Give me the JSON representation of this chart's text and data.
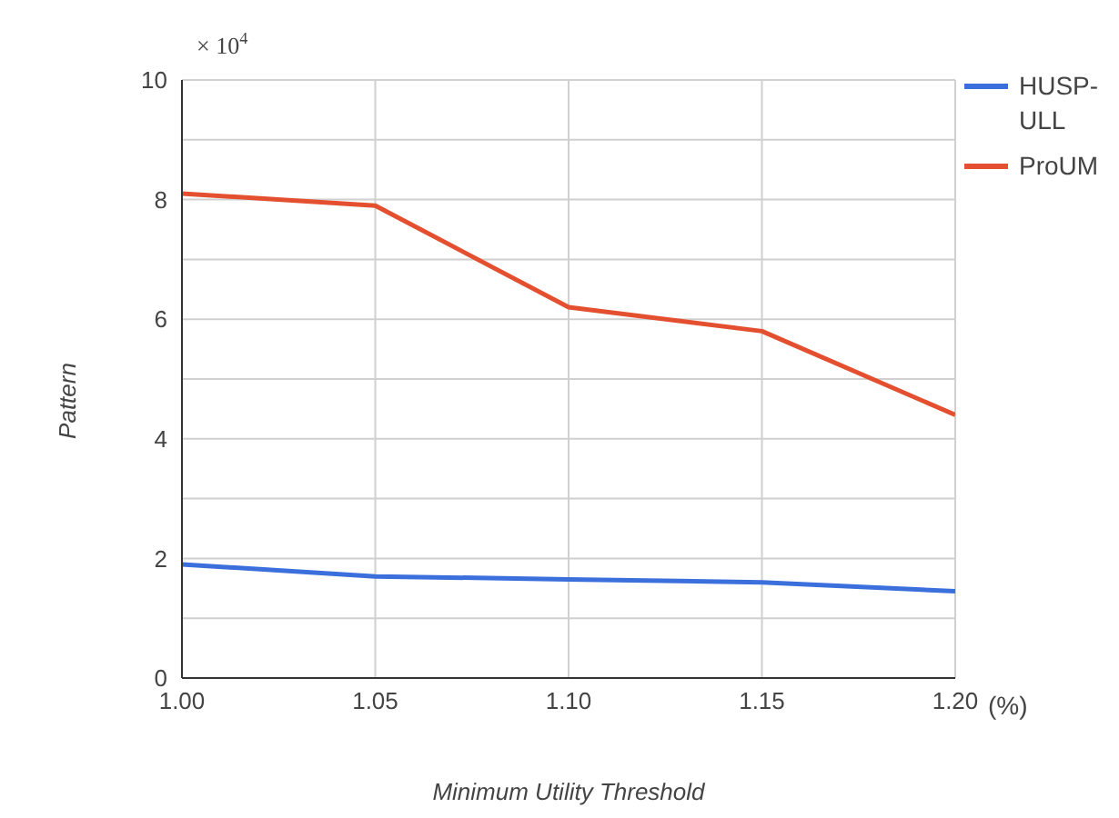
{
  "chart_data": {
    "type": "line",
    "xlabel": "Minimum Utility Threshold",
    "ylabel": "Pattern",
    "x": [
      1.0,
      1.05,
      1.1,
      1.15,
      1.2
    ],
    "series": [
      {
        "name": "HUSP-ULL",
        "color": "#3b6fdc",
        "values": [
          1.9,
          1.7,
          1.65,
          1.6,
          1.45
        ]
      },
      {
        "name": "ProUM",
        "color": "#e4502f",
        "values": [
          8.1,
          7.9,
          6.2,
          5.8,
          4.4
        ]
      }
    ],
    "xlim": [
      1.0,
      1.2
    ],
    "xticks": [
      {
        "value": 1.0,
        "label": "1.00"
      },
      {
        "value": 1.05,
        "label": "1.05"
      },
      {
        "value": 1.1,
        "label": "1.10"
      },
      {
        "value": 1.15,
        "label": "1.15"
      },
      {
        "value": 1.2,
        "label": "1.20"
      }
    ],
    "ylim": [
      0,
      10
    ],
    "yticks": [
      0,
      {
        "value": 1,
        "label": null
      },
      2,
      {
        "value": 3,
        "label": null
      },
      4,
      {
        "value": 5,
        "label": null
      },
      6,
      {
        "value": 7,
        "label": null
      },
      8,
      {
        "value": 9,
        "label": null
      },
      10
    ],
    "grid": true,
    "legend": "top right",
    "marker": "none",
    "line_style": "solid",
    "annotations": [
      "× 10$^{4}$",
      "(%)"
    ]
  }
}
